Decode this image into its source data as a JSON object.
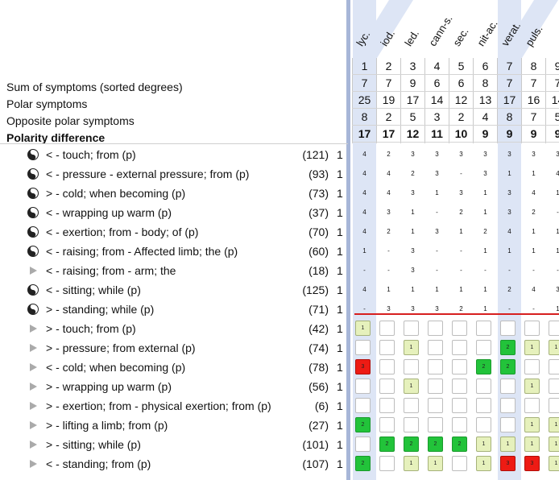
{
  "remedies": [
    "lyc.",
    "iod.",
    "led.",
    "cann-s.",
    "sec.",
    "nit-ac.",
    "verat.",
    "puls.",
    ""
  ],
  "summary": {
    "labels": {
      "sum": "Sum of symptoms (sorted degrees)",
      "polar": "Polar symptoms",
      "opposite": "Opposite polar symptoms",
      "difference": "Polarity difference"
    },
    "rank": [
      "1",
      "2",
      "3",
      "4",
      "5",
      "6",
      "7",
      "8",
      "9"
    ],
    "sum_row": [
      "7",
      "7",
      "9",
      "6",
      "6",
      "8",
      "7",
      "7",
      "7"
    ],
    "polar_row": [
      "25",
      "19",
      "17",
      "14",
      "12",
      "13",
      "17",
      "16",
      "14"
    ],
    "opposite_row": [
      "8",
      "2",
      "5",
      "3",
      "2",
      "4",
      "8",
      "7",
      "5"
    ],
    "difference_row": [
      "17",
      "17",
      "12",
      "11",
      "10",
      "9",
      "9",
      "9",
      "9"
    ]
  },
  "rubrics": [
    {
      "icon": "yinyang",
      "text": "< - touch; from (p)",
      "count": "(121)",
      "deg": "1",
      "cells": [
        "4",
        "2",
        "3",
        "3",
        "3",
        "3",
        "3",
        "3",
        "3"
      ]
    },
    {
      "icon": "yinyang",
      "text": "< - pressure - external pressure; from (p)",
      "count": "(93)",
      "deg": "1",
      "cells": [
        "4",
        "4",
        "2",
        "3",
        "-",
        "3",
        "1",
        "1",
        "4"
      ]
    },
    {
      "icon": "yinyang",
      "text": "> - cold; when becoming (p)",
      "count": "(73)",
      "deg": "1",
      "cells": [
        "4",
        "4",
        "3",
        "1",
        "3",
        "1",
        "3",
        "4",
        "1"
      ]
    },
    {
      "icon": "yinyang",
      "text": "< - wrapping up warm (p)",
      "count": "(37)",
      "deg": "1",
      "cells": [
        "4",
        "3",
        "1",
        "-",
        "2",
        "1",
        "3",
        "2",
        "-"
      ]
    },
    {
      "icon": "yinyang",
      "text": "< - exertion; from - body; of (p)",
      "count": "(70)",
      "deg": "1",
      "cells": [
        "4",
        "2",
        "1",
        "3",
        "1",
        "2",
        "4",
        "1",
        "1"
      ]
    },
    {
      "icon": "yinyang",
      "text": "< - raising; from - Affected limb; the (p)",
      "count": "(60)",
      "deg": "1",
      "cells": [
        "1",
        "-",
        "3",
        "-",
        "-",
        "1",
        "1",
        "1",
        "1"
      ]
    },
    {
      "icon": "triangle",
      "text": "< - raising; from - arm; the",
      "count": "(18)",
      "deg": "1",
      "cells": [
        "-",
        "-",
        "3",
        "-",
        "-",
        "-",
        "-",
        "-",
        "-"
      ]
    },
    {
      "icon": "yinyang",
      "text": "< - sitting; while (p)",
      "count": "(125)",
      "deg": "1",
      "cells": [
        "4",
        "1",
        "1",
        "1",
        "1",
        "1",
        "2",
        "4",
        "3"
      ]
    },
    {
      "icon": "yinyang",
      "text": "> - standing; while (p)",
      "count": "(71)",
      "deg": "1",
      "cells": [
        "-",
        "3",
        "3",
        "3",
        "2",
        "1",
        "-",
        "-",
        "1"
      ]
    },
    {
      "icon": "triangle",
      "text": "> - touch; from (p)",
      "count": "(42)",
      "deg": "1",
      "cells": [
        "y:1",
        "w",
        "w",
        "w",
        "w",
        "w",
        "w",
        "w",
        "w"
      ]
    },
    {
      "icon": "triangle",
      "text": "> - pressure; from external (p)",
      "count": "(74)",
      "deg": "1",
      "cells": [
        "w",
        "w",
        "y:1",
        "w",
        "w",
        "w",
        "g:2",
        "y:1",
        "y:1"
      ]
    },
    {
      "icon": "triangle",
      "text": "< - cold; when becoming (p)",
      "count": "(78)",
      "deg": "1",
      "cells": [
        "r:3",
        "w",
        "w",
        "w",
        "w",
        "g:2",
        "g:2",
        "w",
        "w"
      ]
    },
    {
      "icon": "triangle",
      "text": "> - wrapping up warm (p)",
      "count": "(56)",
      "deg": "1",
      "cells": [
        "w",
        "w",
        "y:1",
        "w",
        "w",
        "w",
        "w",
        "y:1",
        "w"
      ]
    },
    {
      "icon": "triangle",
      "text": "> - exertion; from - physical exertion; from (p)",
      "count": "(6)",
      "deg": "1",
      "cells": [
        "w",
        "w",
        "w",
        "w",
        "w",
        "w",
        "w",
        "w",
        "w"
      ]
    },
    {
      "icon": "triangle",
      "text": "> - lifting a limb; from (p)",
      "count": "(27)",
      "deg": "1",
      "cells": [
        "g:2",
        "w",
        "w",
        "w",
        "w",
        "w",
        "w",
        "y:1",
        "y:1"
      ]
    },
    {
      "icon": "triangle",
      "text": "> - sitting; while (p)",
      "count": "(101)",
      "deg": "1",
      "cells": [
        "w",
        "g:2",
        "g:2",
        "g:2",
        "g:2",
        "y:1",
        "y:1",
        "y:1",
        "y:1"
      ]
    },
    {
      "icon": "triangle",
      "text": "< - standing; from (p)",
      "count": "(107)",
      "deg": "1",
      "cells": [
        "g:2",
        "w",
        "y:1",
        "y:1",
        "w",
        "y:1",
        "r:3",
        "r:3",
        "y:1"
      ]
    }
  ],
  "colors": {
    "green": "#22c33a",
    "yellow": "#e6f1bc",
    "red": "#ee1b14",
    "stripe": "#dde5f5",
    "divider": "#a7b6d8"
  }
}
